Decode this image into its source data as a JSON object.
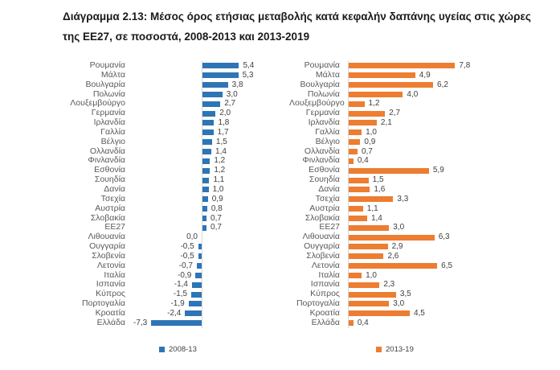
{
  "title": {
    "line1": "Διάγραμμα 2.13: Μέσος όρος ετήσιας μεταβολής κατά κεφαλήν δαπάνης υγείας στις χώρες",
    "line2": "της ΕΕ27, σε ποσοστά, 2008-2013 και 2013-2019"
  },
  "legend": {
    "left": "2008-13",
    "right": "2013-19"
  },
  "colors": {
    "blue": "#2E75B6",
    "orange": "#ED7D31",
    "axis_line": "#D9D9D9",
    "label_text": "#595959",
    "value_text": "#404040",
    "title_text": "#1A1A1A"
  },
  "chart_data": {
    "type": "bar",
    "orientation": "horizontal",
    "title": "Διάγραμμα 2.13: Μέσος όρος ετήσιας μεταβολής κατά κεφαλήν δαπάνης υγείας στις χώρες της ΕΕ27, σε ποσοστά, 2008-2013 και 2013-2019",
    "value_format": "one decimal, comma as decimal separator",
    "grid": false,
    "legend_position": "bottom",
    "categories": [
      "Ρουμανία",
      "Μάλτα",
      "Βουλγαρία",
      "Πολωνία",
      "Λουξεμβούργο",
      "Γερμανία",
      "Ιρλανδία",
      "Γαλλία",
      "Βέλγιο",
      "Ολλανδία",
      "Φινλανδία",
      "Εσθονία",
      "Σουηδία",
      "Δανία",
      "Τσεχία",
      "Αυστρία",
      "Σλοβακία",
      "ΕΕ27",
      "Λιθουανία",
      "Ουγγαρία",
      "Σλοβενία",
      "Λετονία",
      "Ιταλία",
      "Ισπανία",
      "Κύπρος",
      "Πορτογαλία",
      "Κροατία",
      "Ελλάδα"
    ],
    "series": [
      {
        "name": "2008-13",
        "color": "#2E75B6",
        "xlim": [
          -8,
          6
        ],
        "values": [
          5.4,
          5.3,
          3.8,
          3.0,
          2.7,
          2.0,
          1.8,
          1.7,
          1.5,
          1.4,
          1.2,
          1.2,
          1.1,
          1.0,
          0.9,
          0.8,
          0.7,
          0.7,
          0.0,
          -0.5,
          -0.5,
          -0.7,
          -0.9,
          -1.4,
          -1.5,
          -1.9,
          -2.4,
          -7.3
        ]
      },
      {
        "name": "2013-19",
        "color": "#ED7D31",
        "xlim": [
          0,
          9
        ],
        "values": [
          7.8,
          4.9,
          6.2,
          4.0,
          1.2,
          2.7,
          2.1,
          1.0,
          0.9,
          0.7,
          0.4,
          5.9,
          1.5,
          1.6,
          3.3,
          1.1,
          1.4,
          3.0,
          6.3,
          2.9,
          2.6,
          6.5,
          1.0,
          2.3,
          3.5,
          3.0,
          4.5,
          0.4
        ]
      }
    ]
  }
}
